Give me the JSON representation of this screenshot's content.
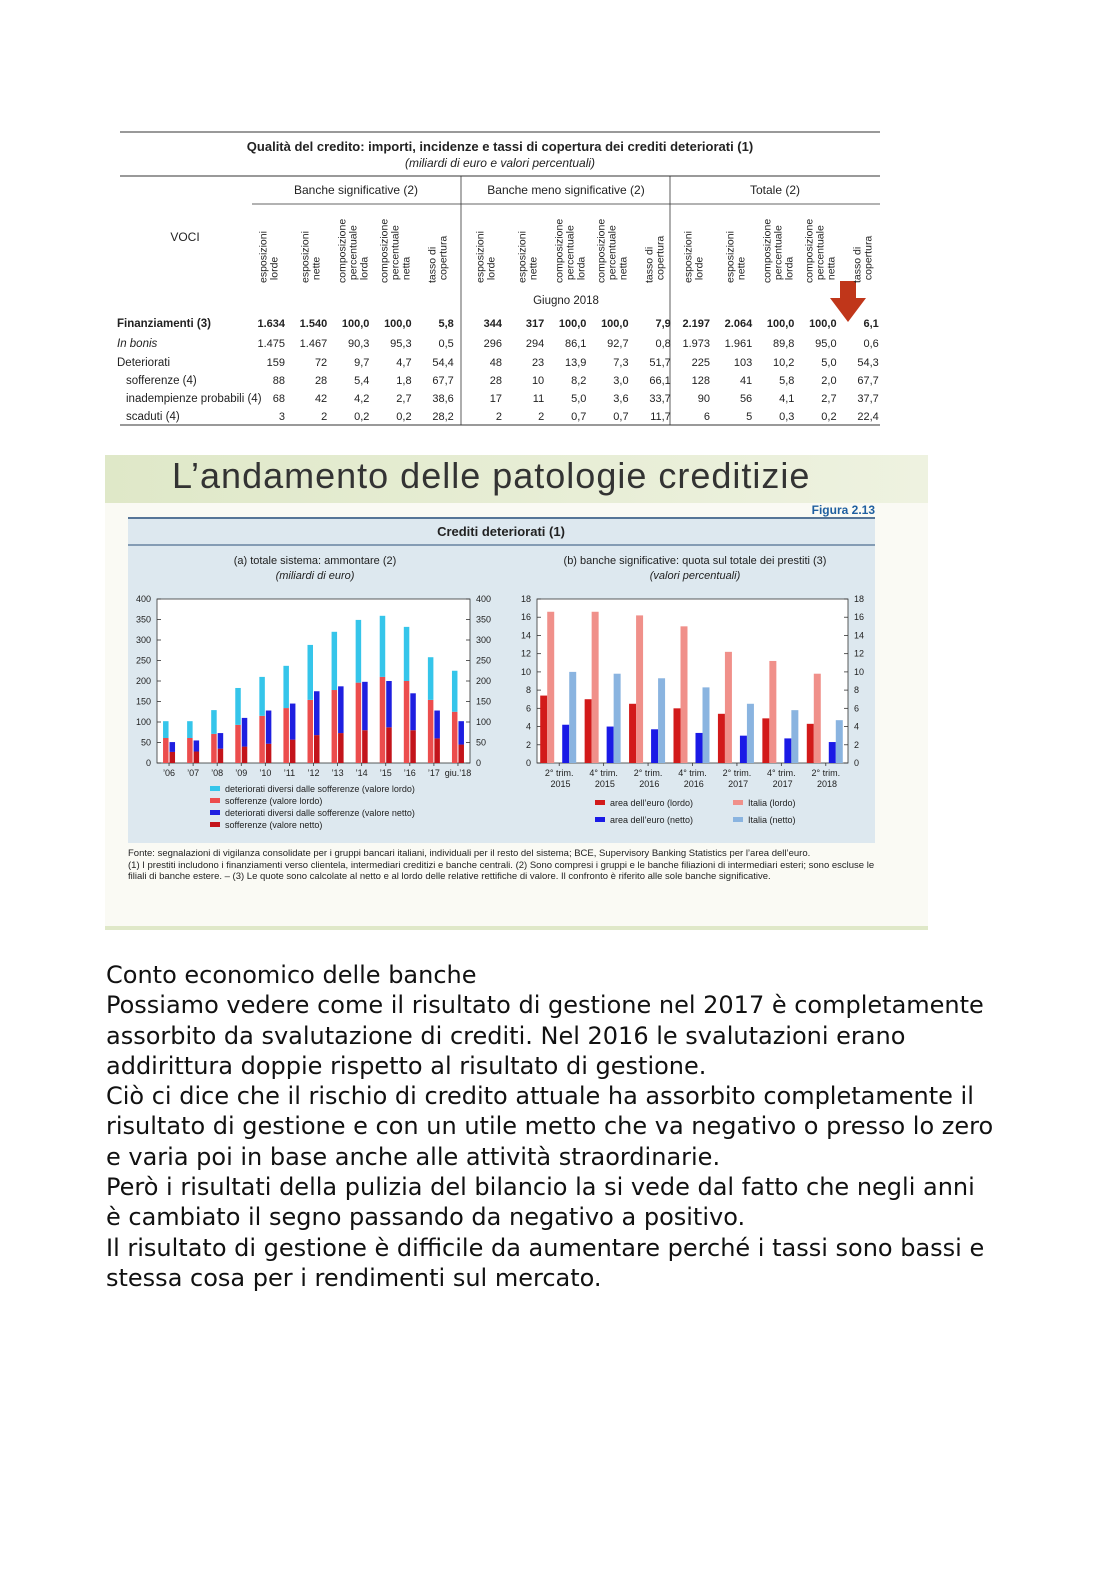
{
  "table": {
    "title": "Qualità del credito: importi, incidenze e tassi di copertura dei crediti deteriorati (1)",
    "subtitle": "(miliardi di euro e valori percentuali)",
    "row_header": "VOCI",
    "groups": [
      "Banche significative (2)",
      "Banche meno significative (2)",
      "Totale (2)"
    ],
    "columns": [
      "esposizioni lorde",
      "esposizioni nette",
      "composizione percentuale lorda",
      "composizione percentuale netta",
      "tasso di copertura"
    ],
    "period": "Giugno 2018",
    "rows": [
      {
        "label": "Finanziamenti (3)",
        "values": [
          "1.634",
          "1.540",
          "100,0",
          "100,0",
          "5,8",
          "344",
          "317",
          "100,0",
          "100,0",
          "7,9",
          "2.197",
          "2.064",
          "100,0",
          "100,0",
          "6,1"
        ]
      },
      {
        "label": "In bonis",
        "values": [
          "1.475",
          "1.467",
          "90,3",
          "95,3",
          "0,5",
          "296",
          "294",
          "86,1",
          "92,7",
          "0,8",
          "1.973",
          "1.961",
          "89,8",
          "95,0",
          "0,6"
        ]
      },
      {
        "label": "Deteriorati",
        "values": [
          "159",
          "72",
          "9,7",
          "4,7",
          "54,4",
          "48",
          "23",
          "13,9",
          "7,3",
          "51,7",
          "225",
          "103",
          "10,2",
          "5,0",
          "54,3"
        ]
      },
      {
        "label": "sofferenze (4)",
        "values": [
          "88",
          "28",
          "5,4",
          "1,8",
          "67,7",
          "28",
          "10",
          "8,2",
          "3,0",
          "66,1",
          "128",
          "41",
          "5,8",
          "2,0",
          "67,7"
        ]
      },
      {
        "label": "inadempienze probabili (4)",
        "values": [
          "68",
          "42",
          "4,2",
          "2,7",
          "38,6",
          "17",
          "11",
          "5,0",
          "3,6",
          "33,7",
          "90",
          "56",
          "4,1",
          "2,7",
          "37,7"
        ]
      },
      {
        "label": "scaduti (4)",
        "values": [
          "3",
          "2",
          "0,2",
          "0,2",
          "28,2",
          "2",
          "2",
          "0,7",
          "0,7",
          "11,7",
          "6",
          "5",
          "0,3",
          "0,2",
          "22,4"
        ]
      }
    ]
  },
  "slide": {
    "title": "L’andamento delle patologie creditizie",
    "figure": "Figura 2.13",
    "figure_title": "Crediti deteriorati (1)",
    "notes": [
      "Fonte: segnalazioni di vigilanza consolidate per i gruppi bancari italiani, individuali per il resto del sistema; BCE, Supervisory Banking Statistics per l’area dell’euro.",
      "(1) I prestiti includono i finanziamenti verso clientela, intermediari creditizi e banche centrali. (2) Sono compresi i gruppi e le banche filiazioni di intermediari esteri; sono escluse le filiali di banche estere. – (3) Le quote sono calcolate al netto e al lordo delle relative rettifiche di valore. Il confronto è riferito alle sole banche significative."
    ]
  },
  "chart_data": [
    {
      "type": "bar",
      "stacked": true,
      "title": "(a) totale sistema: ammontare (2)",
      "subtitle": "(miliardi di euro)",
      "categories": [
        "’06",
        "’07",
        "’08",
        "’09",
        "’10",
        "’11",
        "’12",
        "’13",
        "’14",
        "’15",
        "’16",
        "’17",
        "giu.’18"
      ],
      "series": [
        {
          "name": "deteriorati diversi dalle sofferenze (valore lordo)",
          "color": "#35c5ea",
          "values": [
            41,
            41,
            58,
            90,
            95,
            103,
            134,
            142,
            153,
            149,
            132,
            104,
            100
          ]
        },
        {
          "name": "sofferenze (valore lordo)",
          "color": "#ec4d4d",
          "values": [
            61,
            61,
            71,
            93,
            115,
            134,
            154,
            178,
            196,
            210,
            200,
            154,
            125
          ]
        },
        {
          "name": "deteriorati diversi dalle sofferenze (valore netto)",
          "color": "#1f1fe0",
          "values": [
            24,
            27,
            38,
            70,
            81,
            88,
            107,
            114,
            118,
            113,
            90,
            68,
            57
          ]
        },
        {
          "name": "sofferenze (valore netto)",
          "color": "#c3141b",
          "values": [
            27,
            28,
            35,
            40,
            47,
            57,
            68,
            73,
            80,
            87,
            80,
            60,
            45
          ]
        }
      ],
      "ylim": [
        0,
        400
      ],
      "yticks": [
        0,
        50,
        100,
        150,
        200,
        250,
        300,
        350,
        400
      ],
      "y2lim": [
        0,
        400
      ],
      "y2ticks": [
        0,
        50,
        100,
        150,
        200,
        250,
        300,
        350,
        400
      ],
      "grid": false,
      "legend": "bottom"
    },
    {
      "type": "bar",
      "stacked": false,
      "title": "(b) banche significative: quota sul totale dei prestiti (3)",
      "subtitle": "(valori percentuali)",
      "categories": [
        "2° trim. 2015",
        "4° trim. 2015",
        "2° trim. 2016",
        "4° trim. 2016",
        "2° trim. 2017",
        "4° trim. 2017",
        "2° trim. 2018"
      ],
      "series": [
        {
          "name": "area dell’euro (lordo)",
          "color": "#d21a1a",
          "values": [
            7.4,
            7.0,
            6.5,
            6.0,
            5.4,
            4.9,
            4.3
          ]
        },
        {
          "name": "Italia (lordo)",
          "color": "#f0908a",
          "values": [
            16.6,
            16.6,
            16.2,
            15.0,
            12.2,
            11.2,
            9.8
          ]
        },
        {
          "name": "area dell’euro (netto)",
          "color": "#1a1ae6",
          "values": [
            4.2,
            4.0,
            3.7,
            3.3,
            3.0,
            2.7,
            2.3
          ]
        },
        {
          "name": "Italia (netto)",
          "color": "#8ab4e0",
          "values": [
            10.0,
            9.8,
            9.3,
            8.3,
            6.5,
            5.8,
            4.7
          ]
        }
      ],
      "ylim": [
        0,
        18
      ],
      "yticks": [
        0,
        2,
        4,
        6,
        8,
        10,
        12,
        14,
        16,
        18
      ],
      "y2lim": [
        0,
        18
      ],
      "y2ticks": [
        0,
        2,
        4,
        6,
        8,
        10,
        12,
        14,
        16,
        18
      ],
      "grid": false,
      "legend": "bottom"
    }
  ],
  "body": {
    "paragraphs": [
      "Conto economico delle banche",
      "Possiamo vedere come il risultato di gestione nel 2017 è completamente assorbito da svalutazione di crediti. Nel 2016 le svalutazioni erano addirittura doppie rispetto al risultato di gestione.",
      "Ciò ci dice che il rischio di credito attuale ha assorbito completamente il risultato di gestione e con un utile metto che va negativo o presso lo zero e varia poi in base anche alle attività straordinarie.",
      "Però i risultati della pulizia del bilancio la si vede dal fatto che negli anni è cambiato il segno passando da negativo a positivo.",
      "Il risultato di gestione è difficile da aumentare perché i tassi sono bassi e stessa cosa per i rendimenti sul mercato."
    ]
  }
}
